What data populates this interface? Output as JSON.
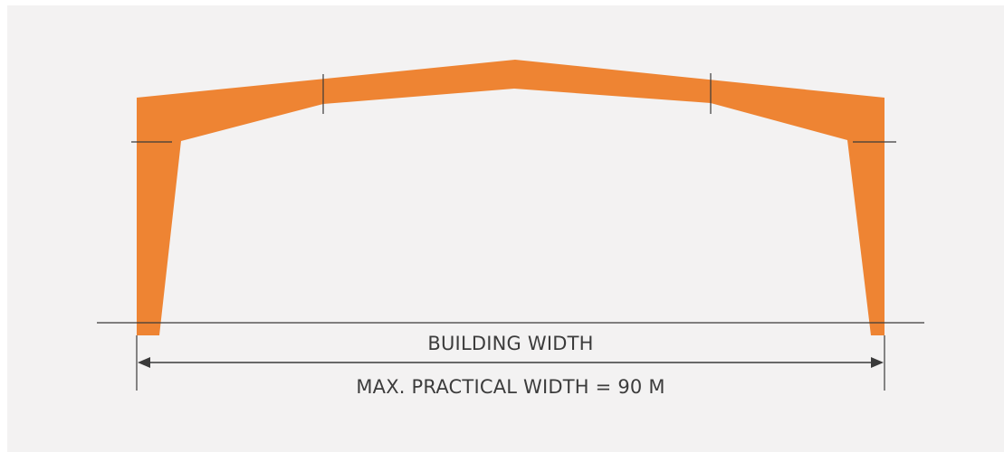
{
  "diagram": {
    "width_label": "BUILDING WIDTH",
    "max_width_label": "MAX. PRACTICAL WIDTH = 90 M"
  },
  "colors": {
    "frame": "#ee8433",
    "line": "#3a3a3a",
    "background": "#f3f2f2",
    "text": "#3c3c3c"
  }
}
